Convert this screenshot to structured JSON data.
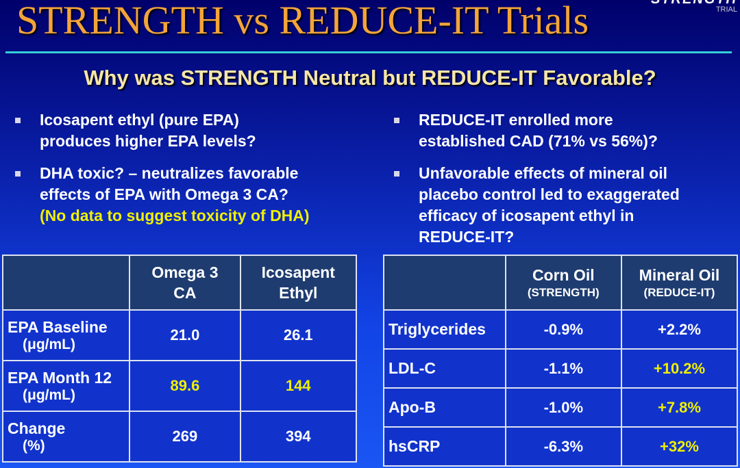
{
  "title": "STRENGTH vs REDUCE-IT Trials",
  "logo": {
    "word": "STRENGTH",
    "sub": "TRIAL"
  },
  "subtitle": "Why was STRENGTH Neutral but REDUCE-IT Favorable?",
  "left_bullets": [
    {
      "lines": [
        "Icosapent ethyl (pure EPA)",
        "produces higher EPA levels?"
      ]
    },
    {
      "lines": [
        "DHA toxic? – neutralizes favorable",
        "effects of EPA with Omega 3 CA?"
      ],
      "highlight": "(No data to suggest toxicity of DHA)"
    }
  ],
  "right_bullets": [
    {
      "lines": [
        "REDUCE-IT enrolled more",
        "established CAD (71% vs 56%)?"
      ]
    },
    {
      "lines": [
        "Unfavorable effects of mineral oil",
        "placebo control led to exaggerated",
        "efficacy of icosapent ethyl in",
        "REDUCE-IT?"
      ]
    }
  ],
  "table1": {
    "headers": [
      {
        "line1": "Omega 3",
        "line2": "CA"
      },
      {
        "line1": "Icosapent",
        "line2": "Ethyl"
      }
    ],
    "rows": [
      {
        "label": "EPA Baseline",
        "unit": "(μg/mL)",
        "values": [
          "21.0",
          "26.1"
        ]
      },
      {
        "label": "EPA Month 12",
        "unit": "(μg/mL)",
        "values": [
          "89.6",
          "144"
        ]
      },
      {
        "label": "Change",
        "unit": "(%)",
        "values": [
          "269",
          "394"
        ]
      }
    ]
  },
  "table2": {
    "headers": [
      {
        "line1": "Corn Oil",
        "line2": "(STRENGTH)"
      },
      {
        "line1": "Mineral Oil",
        "line2": "(REDUCE-IT)"
      }
    ],
    "rows": [
      {
        "label": "Triglycerides",
        "values": [
          "-0.9%",
          "+2.2%"
        ]
      },
      {
        "label": "LDL-C",
        "values": [
          "-1.1%",
          "+10.2%"
        ]
      },
      {
        "label": "Apo-B",
        "values": [
          "-1.0%",
          "+7.8%"
        ]
      },
      {
        "label": "hsCRP",
        "values": [
          "-6.3%",
          "+32%"
        ]
      }
    ]
  },
  "colors": {
    "title": "#f3a43a",
    "subtitle": "#f5e6a8",
    "highlight": "#f0f000",
    "rule": "#35d0d6",
    "table_header_bg": "#1e3c70",
    "table_cell_bg": "#1133cc"
  }
}
